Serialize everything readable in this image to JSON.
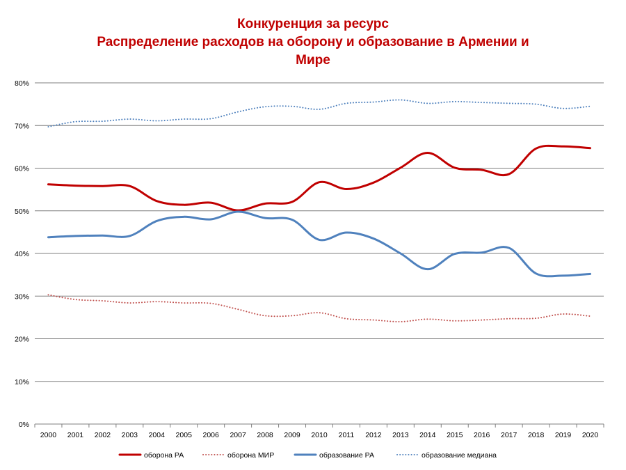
{
  "chart_data": {
    "type": "line",
    "title_lines": [
      "Конкуренция за ресурс",
      "Распределение расходов на оборону и  образование в Армении и",
      "Мире"
    ],
    "categories": [
      "2000",
      "2001",
      "2002",
      "2003",
      "2004",
      "2005",
      "2006",
      "2007",
      "2008",
      "2009",
      "2010",
      "2011",
      "2012",
      "2013",
      "2014",
      "2015",
      "2016",
      "2017",
      "2018",
      "2019",
      "2020"
    ],
    "y_ticks": [
      "0%",
      "10%",
      "20%",
      "30%",
      "40%",
      "50%",
      "60%",
      "70%",
      "80%"
    ],
    "ylim": [
      0,
      80
    ],
    "grid": "horizontal",
    "legend_position": "bottom",
    "series": [
      {
        "name": "оборона РА",
        "color": "#c00000",
        "style": "solid",
        "width": 3,
        "values": [
          56.2,
          55.9,
          55.8,
          55.8,
          52.3,
          51.4,
          51.9,
          50.1,
          51.7,
          52.1,
          56.7,
          55.1,
          56.6,
          60.1,
          63.6,
          60.1,
          59.6,
          58.6,
          64.6,
          65.1,
          64.7
        ]
      },
      {
        "name": "оборона МИР",
        "color": "#c0504d",
        "style": "dotted",
        "width": 2,
        "values": [
          30.3,
          29.2,
          28.9,
          28.4,
          28.7,
          28.4,
          28.3,
          26.9,
          25.4,
          25.4,
          26.1,
          24.7,
          24.4,
          24.0,
          24.6,
          24.2,
          24.4,
          24.7,
          24.8,
          25.8,
          25.3
        ]
      },
      {
        "name": "образование РА",
        "color": "#4f81bd",
        "style": "solid",
        "width": 3,
        "values": [
          43.8,
          44.1,
          44.2,
          44.1,
          47.6,
          48.6,
          48.0,
          49.8,
          48.3,
          47.9,
          43.2,
          44.9,
          43.5,
          40.0,
          36.3,
          39.9,
          40.2,
          41.3,
          35.3,
          34.8,
          35.2
        ]
      },
      {
        "name": "образование медиана",
        "color": "#4f81bd",
        "style": "dotted",
        "width": 2,
        "values": [
          69.7,
          70.9,
          71.0,
          71.5,
          71.1,
          71.5,
          71.6,
          73.2,
          74.4,
          74.5,
          73.8,
          75.2,
          75.5,
          76.0,
          75.2,
          75.6,
          75.4,
          75.2,
          75.0,
          74.0,
          74.5
        ]
      }
    ]
  }
}
